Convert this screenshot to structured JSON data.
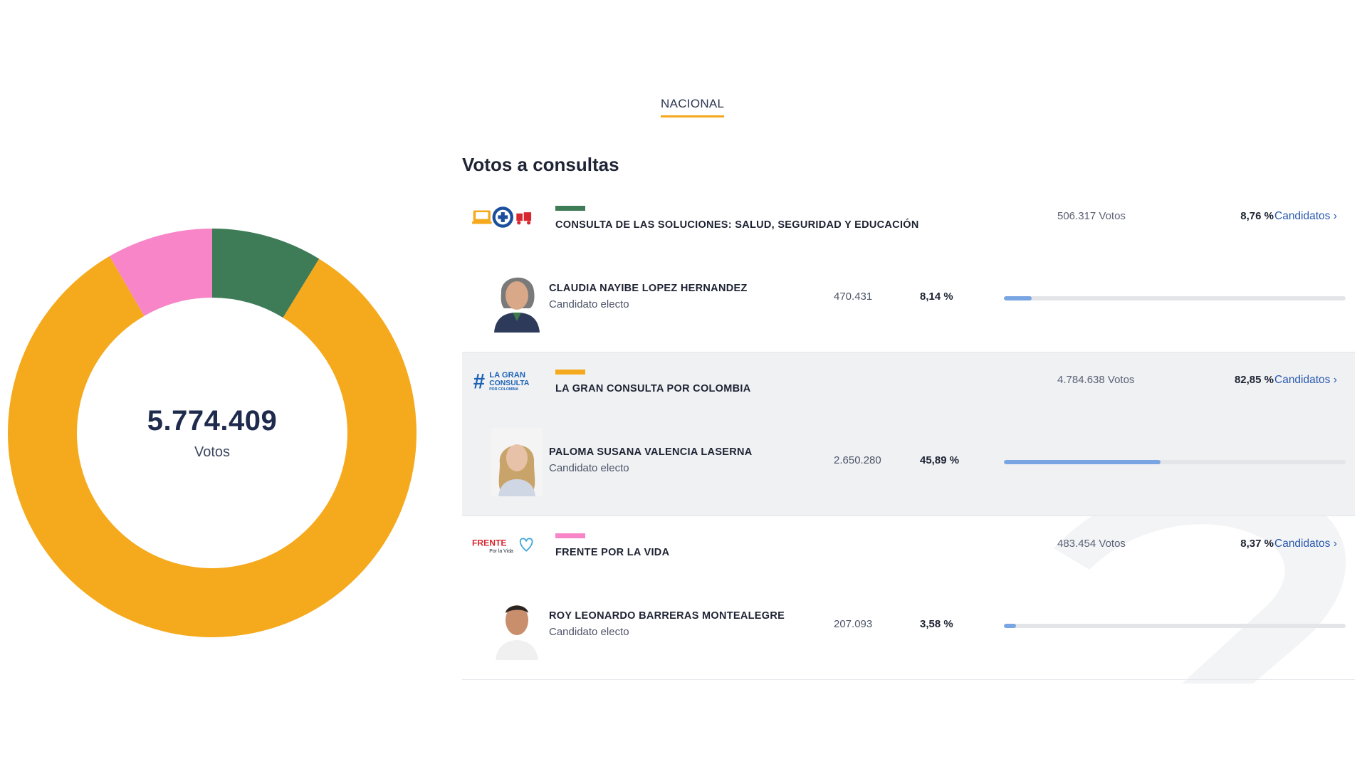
{
  "tab": {
    "label": "NACIONAL"
  },
  "section_title": "Votos a consultas",
  "donut": {
    "total": "5.774.409",
    "label": "Votos",
    "slices": [
      {
        "party": "CONSULTA DE LAS SOLUCIONES: SALUD, SEGURIDAD Y EDUCACIÓN",
        "value": 506317,
        "color": "#3e7b57"
      },
      {
        "party": "LA GRAN CONSULTA POR COLOMBIA",
        "value": 4784638,
        "color": "#f5a91c"
      },
      {
        "party": "FRENTE POR LA VIDA",
        "value": 483454,
        "color": "#f785c8"
      }
    ]
  },
  "consultas": [
    {
      "party_name": "CONSULTA DE LAS SOLUCIONES: SALUD, SEGURIDAD Y EDUCACIÓN",
      "party_color": "#3e7b57",
      "party_votes": "506.317 Votos",
      "party_pct": "8,76 %",
      "link_label": "Candidatos ›",
      "logo": "consulta-soluciones-logo",
      "candidate": {
        "name": "CLAUDIA NAYIBE LOPEZ HERNANDEZ",
        "subtitle": "Candidato electo",
        "votes": "470.431",
        "pct": "8,14 %",
        "fraction": 0.0814
      }
    },
    {
      "party_name": "LA GRAN CONSULTA POR COLOMBIA",
      "party_color": "#f5a91c",
      "party_votes": "4.784.638 Votos",
      "party_pct": "82,85 %",
      "link_label": "Candidatos ›",
      "logo": "la-gran-consulta-logo",
      "logo_text": {
        "hash": "#",
        "line1": "LA GRAN",
        "line2": "CONSULTA",
        "line3": "POR COLOMBIA"
      },
      "candidate": {
        "name": "PALOMA SUSANA VALENCIA LASERNA",
        "subtitle": "Candidato electo",
        "votes": "2.650.280",
        "pct": "45,89 %",
        "fraction": 0.4589
      }
    },
    {
      "party_name": "FRENTE POR LA VIDA",
      "party_color": "#f785c8",
      "party_votes": "483.454 Votos",
      "party_pct": "8,37 %",
      "link_label": "Candidatos ›",
      "logo": "frente-por-la-vida-logo",
      "logo_text": {
        "word": "FRENTE",
        "sub": "Por la Vida"
      },
      "candidate": {
        "name": "ROY LEONARDO BARRERAS MONTEALEGRE",
        "subtitle": "Candidato electo",
        "votes": "207.093",
        "pct": "3,58 %",
        "fraction": 0.0358
      }
    }
  ]
}
